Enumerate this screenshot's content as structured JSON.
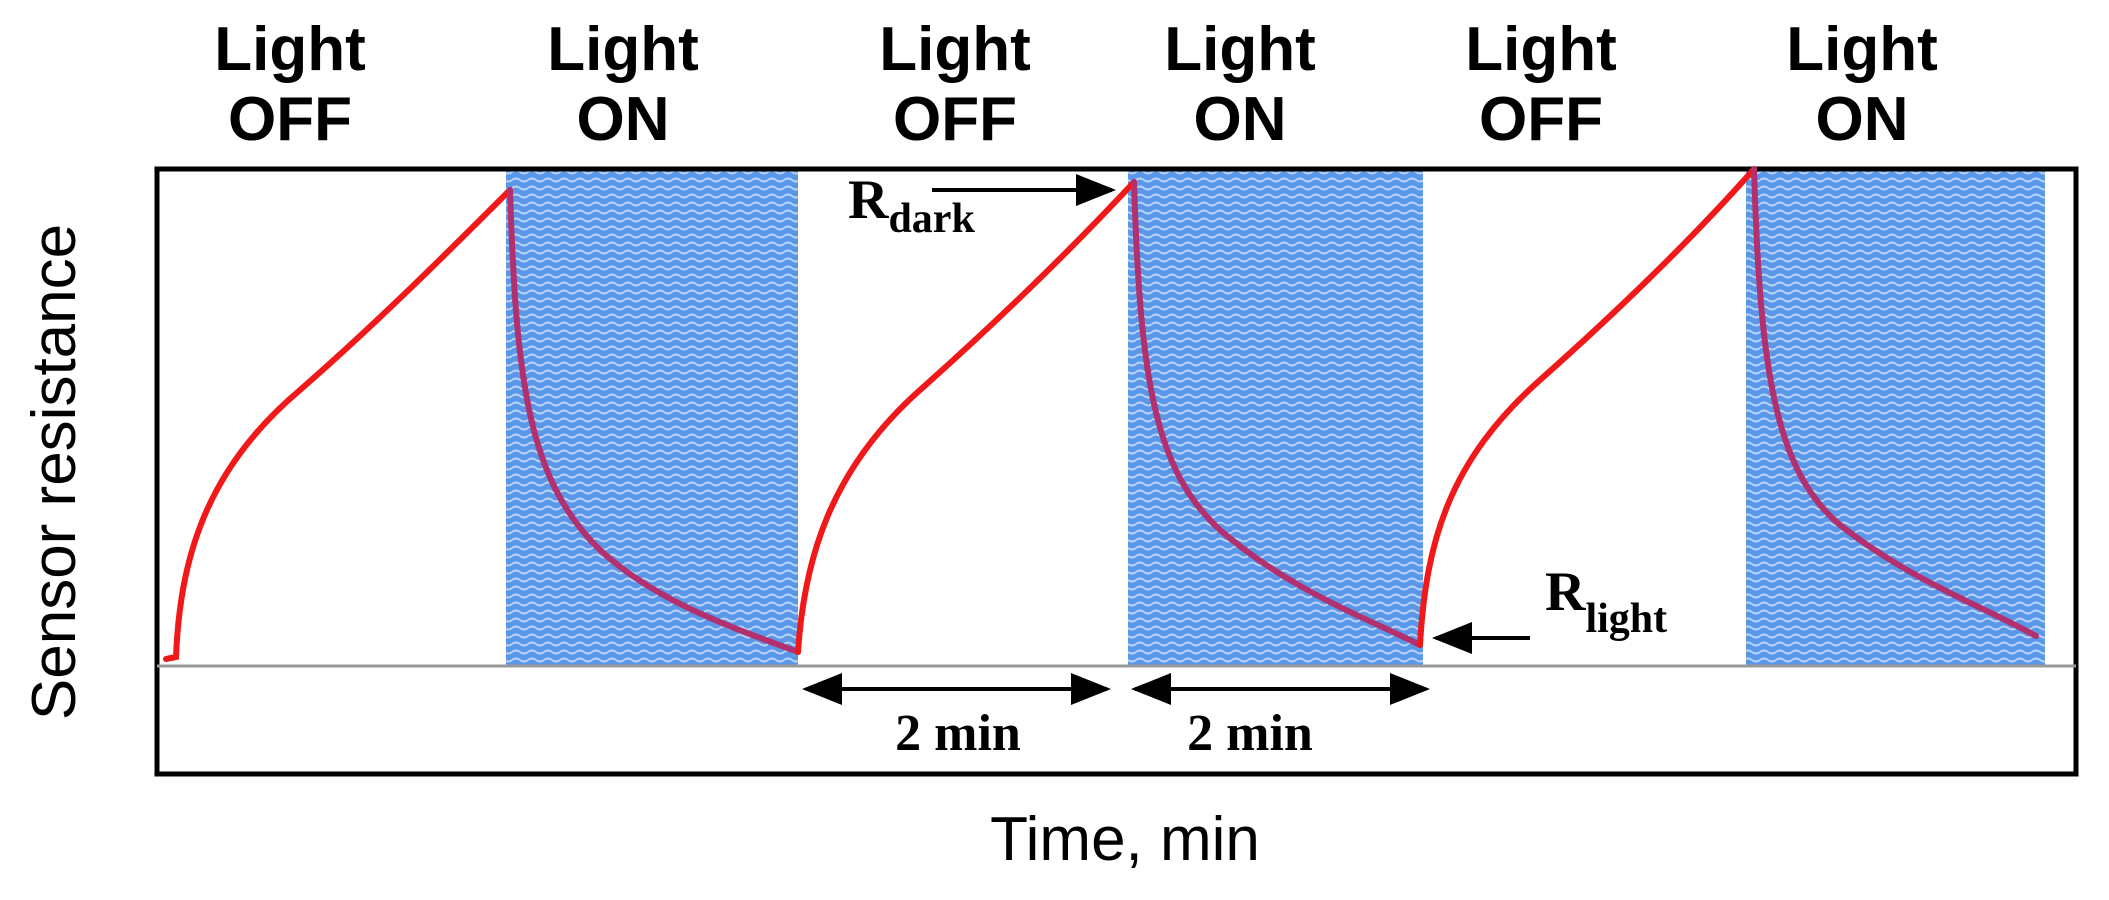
{
  "phases": [
    {
      "line1": "Light",
      "line2": "OFF"
    },
    {
      "line1": "Light",
      "line2": "ON"
    },
    {
      "line1": "Light",
      "line2": "OFF"
    },
    {
      "line1": "Light",
      "line2": "ON"
    },
    {
      "line1": "Light",
      "line2": "OFF"
    },
    {
      "line1": "Light",
      "line2": "ON"
    }
  ],
  "annotations": {
    "r_dark": {
      "main": "R",
      "sub": "dark"
    },
    "r_light": {
      "main": "R",
      "sub": "light"
    },
    "interval_1": "2 min",
    "interval_2": "2 min"
  },
  "axes": {
    "y_label": "Sensor resistance",
    "x_label": "Time, min"
  }
}
